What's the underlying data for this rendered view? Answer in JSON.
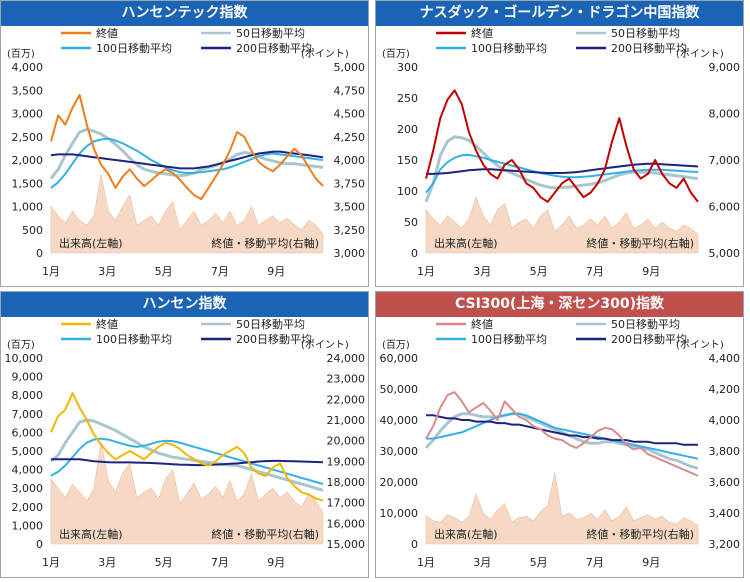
{
  "legend": {
    "close": "終値",
    "ma50": "50日移動平均",
    "ma100": "100日移動平均",
    "ma200": "200日移動平均"
  },
  "colors": {
    "ma50": "#a9c6cf",
    "ma100": "#33b1e6",
    "ma200": "#1f2280",
    "volume": "#f5d9c4"
  },
  "chart_data": [
    {
      "type": "line",
      "title": "ハンセンテック指数",
      "title_bg": "#1b63b5",
      "close_color": "#f07d1b",
      "ylabel_left": "(百万)",
      "ylabel_right": "(ポイント)",
      "left_ticks": [
        "4,000",
        "3,500",
        "3,000",
        "2,500",
        "2,000",
        "1,500",
        "1,000",
        "500",
        "0"
      ],
      "right_ticks": [
        "5,000",
        "4,750",
        "4,500",
        "4,250",
        "4,000",
        "3,750",
        "3,500",
        "3,250",
        "3,000"
      ],
      "ylim_left": [
        0,
        4000
      ],
      "ylim_right": [
        3000,
        5000
      ],
      "x_ticks": [
        "1月",
        "3月",
        "5月",
        "7月",
        "9月"
      ],
      "volume_label": "出来高(左軸)",
      "price_label": "終値・移動平均(右軸)",
      "close": [
        4200,
        4480,
        4380,
        4560,
        4700,
        4380,
        4120,
        3950,
        3850,
        3700,
        3820,
        3900,
        3800,
        3720,
        3780,
        3850,
        3900,
        3860,
        3790,
        3700,
        3620,
        3580,
        3700,
        3820,
        3950,
        4100,
        4300,
        4250,
        4100,
        3980,
        3920,
        3880,
        3950,
        4040,
        4120,
        4050,
        3920,
        3800,
        3720
      ],
      "ma50": [
        3800,
        3900,
        4050,
        4180,
        4300,
        4330,
        4310,
        4280,
        4230,
        4170,
        4100,
        4020,
        3950,
        3900,
        3880,
        3860,
        3850,
        3840,
        3830,
        3840,
        3860,
        3900,
        3920,
        3940,
        3970,
        4010,
        4060,
        4080,
        4070,
        4040,
        4010,
        3990,
        3970,
        3960,
        3960,
        3950,
        3940,
        3930,
        3920
      ],
      "ma100": [
        3700,
        3760,
        3850,
        3960,
        4070,
        4150,
        4200,
        4220,
        4230,
        4210,
        4180,
        4140,
        4100,
        4050,
        4000,
        3960,
        3920,
        3890,
        3870,
        3860,
        3860,
        3870,
        3880,
        3890,
        3900,
        3920,
        3950,
        3980,
        4010,
        4040,
        4060,
        4070,
        4060,
        4050,
        4040,
        4030,
        4020,
        4010,
        4000
      ],
      "ma200": [
        4050,
        4060,
        4060,
        4060,
        4050,
        4040,
        4030,
        4020,
        4010,
        4000,
        3990,
        3980,
        3970,
        3960,
        3950,
        3940,
        3930,
        3920,
        3910,
        3910,
        3910,
        3920,
        3930,
        3950,
        3970,
        3990,
        4010,
        4030,
        4050,
        4070,
        4080,
        4090,
        4090,
        4080,
        4070,
        4060,
        4050,
        4040,
        4030
      ],
      "volume": [
        1000,
        800,
        650,
        900,
        700,
        600,
        800,
        1700,
        900,
        700,
        1000,
        1250,
        600,
        700,
        800,
        600,
        900,
        1100,
        500,
        700,
        900,
        600,
        700,
        850,
        650,
        900,
        600,
        700,
        1000,
        600,
        700,
        800,
        650,
        750,
        600,
        500,
        700,
        600,
        400
      ]
    },
    {
      "type": "line",
      "title": "ナスダック・ゴールデン・ドラゴン中国指数",
      "title_bg": "#1b63b5",
      "close_color": "#c00000",
      "ylabel_left": "(百万)",
      "ylabel_right": "(ポイント)",
      "left_ticks": [
        "300",
        "250",
        "200",
        "150",
        "100",
        "50",
        "0"
      ],
      "right_ticks": [
        "9,000",
        "8,000",
        "7,000",
        "6,000",
        "5,000"
      ],
      "ylim_left": [
        0,
        300
      ],
      "ylim_right": [
        5000,
        9000
      ],
      "x_ticks": [
        "1月",
        "3月",
        "5月",
        "7月",
        "9月"
      ],
      "volume_label": "出来高(左軸)",
      "price_label": "終値・移動平均(右軸)",
      "close": [
        6600,
        7200,
        7900,
        8300,
        8500,
        8200,
        7600,
        7200,
        6900,
        6700,
        6600,
        6900,
        7000,
        6800,
        6500,
        6400,
        6200,
        6100,
        6300,
        6500,
        6600,
        6400,
        6200,
        6300,
        6500,
        6800,
        7400,
        7900,
        7300,
        6800,
        6600,
        6700,
        7000,
        6700,
        6500,
        6400,
        6600,
        6300,
        6100
      ],
      "ma50": [
        6100,
        6500,
        7100,
        7400,
        7500,
        7480,
        7420,
        7300,
        7150,
        7000,
        6880,
        6780,
        6720,
        6650,
        6580,
        6520,
        6460,
        6420,
        6400,
        6410,
        6420,
        6440,
        6460,
        6480,
        6510,
        6560,
        6620,
        6680,
        6720,
        6740,
        6740,
        6730,
        6720,
        6700,
        6680,
        6660,
        6640,
        6620,
        6600
      ],
      "ma100": [
        6300,
        6500,
        6800,
        6950,
        7050,
        7100,
        7110,
        7080,
        7050,
        7000,
        6960,
        6920,
        6880,
        6840,
        6800,
        6760,
        6720,
        6690,
        6660,
        6640,
        6630,
        6630,
        6640,
        6650,
        6670,
        6690,
        6710,
        6730,
        6750,
        6770,
        6780,
        6790,
        6790,
        6790,
        6780,
        6770,
        6760,
        6750,
        6740
      ],
      "ma200": [
        6700,
        6700,
        6710,
        6720,
        6740,
        6760,
        6780,
        6790,
        6800,
        6800,
        6790,
        6780,
        6770,
        6760,
        6750,
        6740,
        6730,
        6720,
        6720,
        6720,
        6730,
        6740,
        6760,
        6780,
        6800,
        6820,
        6840,
        6860,
        6880,
        6900,
        6910,
        6920,
        6920,
        6910,
        6900,
        6890,
        6880,
        6870,
        6860
      ],
      "volume": [
        70,
        55,
        45,
        60,
        50,
        40,
        55,
        90,
        60,
        45,
        70,
        80,
        40,
        50,
        55,
        40,
        60,
        70,
        35,
        45,
        60,
        40,
        45,
        55,
        45,
        60,
        40,
        50,
        65,
        40,
        45,
        55,
        40,
        50,
        40,
        35,
        45,
        40,
        30
      ]
    },
    {
      "type": "line",
      "title": "ハンセン指数",
      "title_bg": "#1b63b5",
      "close_color": "#f2b705",
      "ylabel_left": "(百万)",
      "ylabel_right": "(ポイント)",
      "left_ticks": [
        "10,000",
        "9,000",
        "8,000",
        "7,000",
        "6,000",
        "5,000",
        "4,000",
        "3,000",
        "2,000",
        "1,000",
        "0"
      ],
      "right_ticks": [
        "24,000",
        "23,000",
        "22,000",
        "21,000",
        "20,000",
        "19,000",
        "18,000",
        "17,000",
        "16,000",
        "15,000"
      ],
      "ylim_left": [
        0,
        10000
      ],
      "ylim_right": [
        15000,
        24000
      ],
      "x_ticks": [
        "1月",
        "3月",
        "5月",
        "7月",
        "9月"
      ],
      "volume_label": "出来高(左軸)",
      "price_label": "終値・移動平均(右軸)",
      "close": [
        20400,
        21200,
        21500,
        22300,
        21600,
        21000,
        20300,
        19800,
        19400,
        19100,
        19300,
        19500,
        19300,
        19100,
        19400,
        19700,
        19900,
        19800,
        19600,
        19300,
        19100,
        18900,
        18800,
        19000,
        19300,
        19500,
        19700,
        19400,
        18700,
        18400,
        18300,
        18700,
        18900,
        18200,
        17800,
        17500,
        17400,
        17200,
        17100
      ],
      "ma50": [
        19000,
        19300,
        19900,
        20400,
        20900,
        21000,
        20950,
        20800,
        20650,
        20500,
        20300,
        20100,
        19900,
        19700,
        19550,
        19400,
        19300,
        19200,
        19150,
        19100,
        19050,
        19000,
        18950,
        18900,
        18850,
        18820,
        18800,
        18700,
        18600,
        18500,
        18400,
        18300,
        18200,
        18100,
        18000,
        17900,
        17800,
        17700,
        17600
      ],
      "ma100": [
        18300,
        18500,
        18800,
        19200,
        19600,
        19900,
        20050,
        20100,
        20050,
        19950,
        19850,
        19750,
        19700,
        19750,
        19850,
        19950,
        20000,
        19980,
        19900,
        19800,
        19700,
        19600,
        19500,
        19400,
        19300,
        19200,
        19100,
        19000,
        18900,
        18800,
        18700,
        18600,
        18500,
        18400,
        18300,
        18200,
        18100,
        18000,
        17900
      ],
      "ma200": [
        19100,
        19100,
        19100,
        19100,
        19100,
        19050,
        19000,
        18980,
        18960,
        18950,
        18950,
        18950,
        18940,
        18930,
        18920,
        18900,
        18880,
        18860,
        18840,
        18830,
        18820,
        18820,
        18830,
        18840,
        18860,
        18880,
        18900,
        18930,
        18960,
        18990,
        19010,
        19020,
        19020,
        19010,
        19000,
        18990,
        18980,
        18970,
        18960
      ],
      "volume": [
        3500,
        3000,
        2500,
        3200,
        2800,
        2300,
        3000,
        5500,
        3400,
        2800,
        3800,
        4300,
        2500,
        2800,
        3000,
        2400,
        3500,
        4000,
        2200,
        2700,
        3300,
        2400,
        2700,
        3100,
        2500,
        3400,
        2300,
        2700,
        3800,
        2300,
        2700,
        3000,
        2500,
        2800,
        2300,
        2000,
        2700,
        2300,
        1700
      ]
    },
    {
      "type": "line",
      "title": "CSI300(上海・深セン300)指数",
      "title_bg": "#c0504d",
      "close_color": "#d98b8b",
      "ylabel_left": "(百万)",
      "ylabel_right": "(ポイント)",
      "left_ticks": [
        "60,000",
        "50,000",
        "40,000",
        "30,000",
        "20,000",
        "10,000",
        "0"
      ],
      "right_ticks": [
        "4,400",
        "4,200",
        "4,000",
        "3,800",
        "3,600",
        "3,400",
        "3,200"
      ],
      "ylim_left": [
        0,
        60000
      ],
      "ylim_right": [
        3200,
        4400
      ],
      "x_ticks": [
        "1月",
        "3月",
        "5月",
        "7月",
        "9月"
      ],
      "volume_label": "出来高(左軸)",
      "price_label": "終値・移動平均(右軸)",
      "close": [
        3880,
        3960,
        4080,
        4160,
        4180,
        4120,
        4050,
        4080,
        4110,
        4060,
        4000,
        4120,
        4070,
        4020,
        4000,
        3960,
        3940,
        3900,
        3880,
        3870,
        3840,
        3820,
        3850,
        3890,
        3930,
        3950,
        3940,
        3900,
        3840,
        3810,
        3820,
        3780,
        3760,
        3740,
        3720,
        3700,
        3680,
        3660,
        3640
      ],
      "ma50": [
        3820,
        3870,
        3930,
        3980,
        4020,
        4040,
        4040,
        4030,
        4020,
        4020,
        4020,
        4030,
        4040,
        4040,
        4020,
        4000,
        3980,
        3960,
        3940,
        3920,
        3900,
        3880,
        3860,
        3850,
        3850,
        3860,
        3860,
        3850,
        3840,
        3830,
        3820,
        3810,
        3790,
        3770,
        3750,
        3740,
        3720,
        3700,
        3690
      ],
      "ma100": [
        3880,
        3880,
        3890,
        3900,
        3910,
        3920,
        3940,
        3960,
        3980,
        4000,
        4020,
        4030,
        4040,
        4040,
        4030,
        4010,
        3990,
        3970,
        3950,
        3940,
        3930,
        3920,
        3910,
        3900,
        3890,
        3880,
        3870,
        3860,
        3850,
        3840,
        3830,
        3820,
        3810,
        3800,
        3790,
        3780,
        3770,
        3760,
        3750
      ],
      "ma200": [
        4030,
        4030,
        4020,
        4010,
        4010,
        4000,
        4000,
        3990,
        3990,
        3990,
        3980,
        3980,
        3970,
        3970,
        3960,
        3950,
        3940,
        3930,
        3920,
        3910,
        3900,
        3900,
        3890,
        3890,
        3880,
        3880,
        3870,
        3870,
        3870,
        3860,
        3860,
        3860,
        3850,
        3850,
        3850,
        3850,
        3840,
        3840,
        3840
      ],
      "volume": [
        9000,
        7500,
        7000,
        9500,
        8500,
        7000,
        9000,
        16000,
        10000,
        8000,
        11000,
        13000,
        7000,
        8500,
        9000,
        7500,
        10500,
        12500,
        23000,
        9000,
        10000,
        8000,
        8500,
        10000,
        8000,
        11000,
        7500,
        9000,
        12000,
        7500,
        8500,
        9500,
        8000,
        9000,
        7000,
        6500,
        8500,
        7500,
        6000
      ]
    }
  ]
}
